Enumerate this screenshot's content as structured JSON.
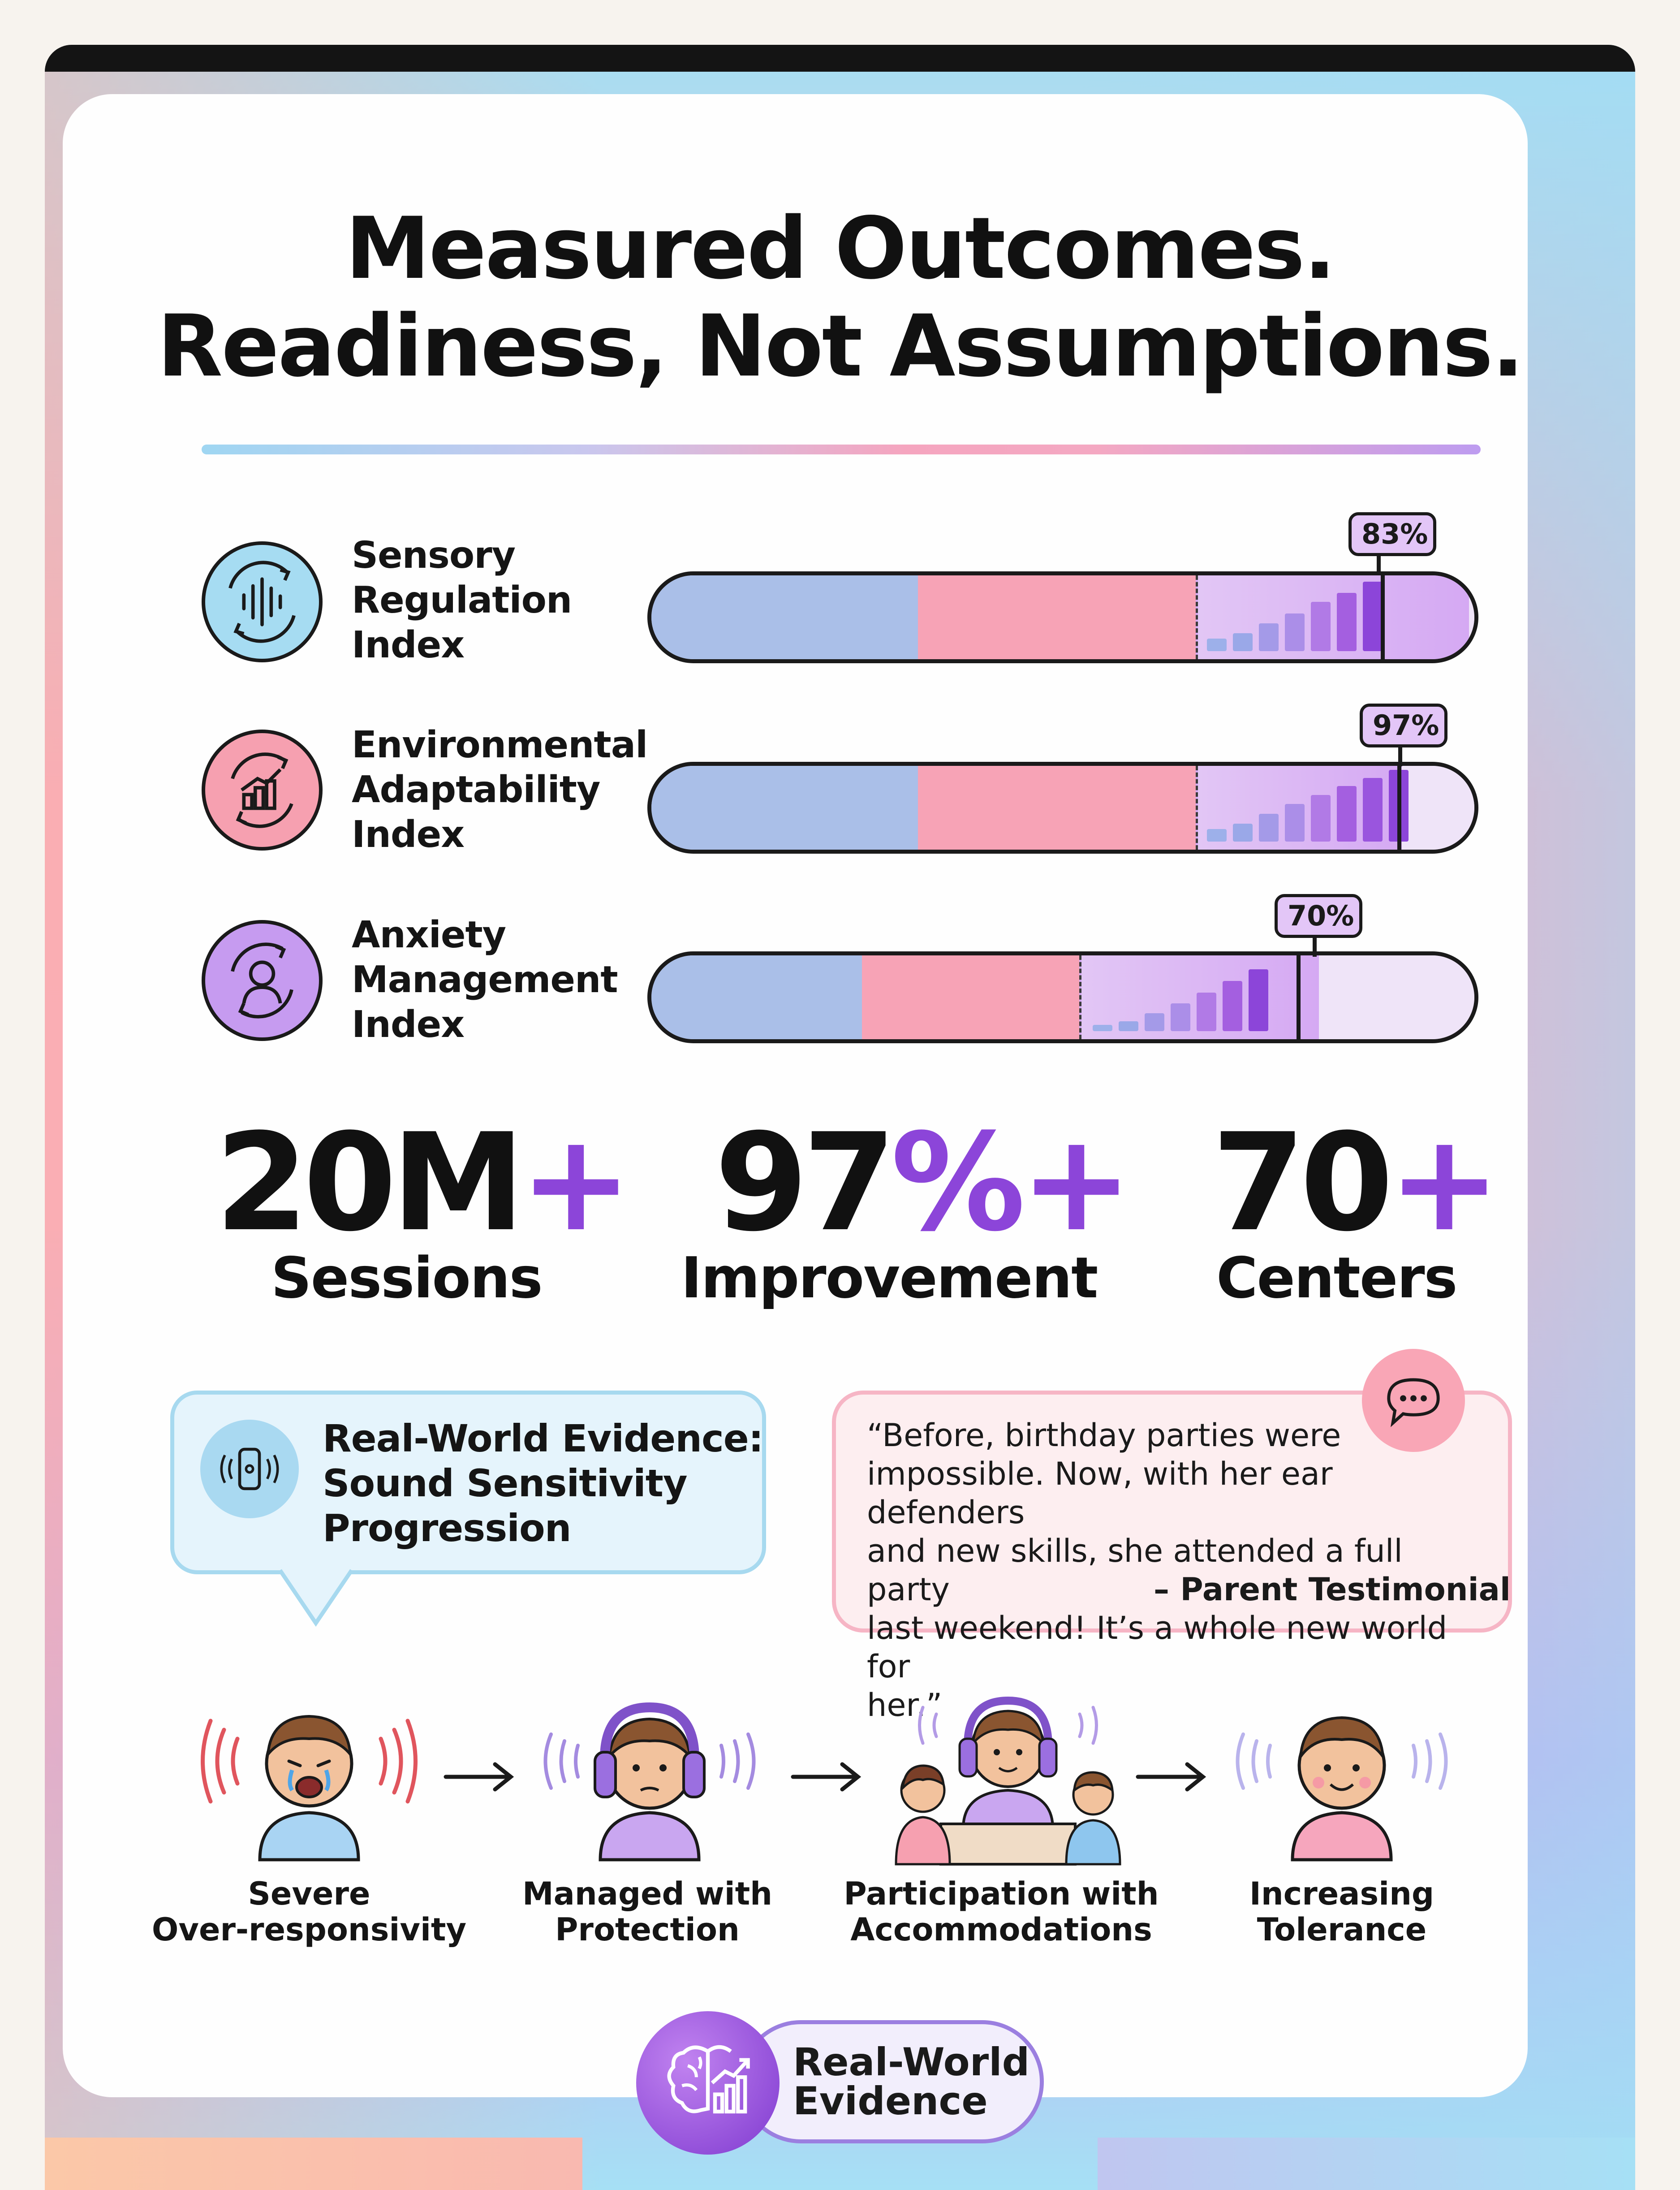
{
  "title": {
    "line1": "Measured Outcomes.",
    "line2": "Readiness, Not Assumptions."
  },
  "metrics": [
    {
      "label_lines": [
        "Sensory",
        "Regulation",
        "Index"
      ],
      "icon": "sound-wave-cycle-icon",
      "icon_color": "#a6dcf2",
      "value_percent": 83,
      "tag": "83%"
    },
    {
      "label_lines": [
        "Environmental",
        "Adaptability",
        "Index"
      ],
      "icon": "growth-chart-icon",
      "icon_color": "#f6a0b0",
      "value_percent": 97,
      "tag": "97%"
    },
    {
      "label_lines": [
        "Anxiety",
        "Management",
        "Index"
      ],
      "icon": "person-cycle-icon",
      "icon_color": "#c69bf0",
      "value_percent": 70,
      "tag": "70%"
    }
  ],
  "stats": [
    {
      "number": "20M",
      "suffix": "+",
      "label": "Sessions"
    },
    {
      "number": "97",
      "suffix": "%+",
      "label": "Improvement"
    },
    {
      "number": "70",
      "suffix": "+",
      "label": "Centers"
    }
  ],
  "evidence": {
    "icon": "sound-device-icon",
    "title_lines": [
      "Real-World Evidence:",
      "Sound Sensitivity",
      "Progression"
    ]
  },
  "testimonial": {
    "icon": "speech-bubble-icon",
    "lines": [
      "“Before, birthday parties were",
      "impossible. Now, with her ear defenders",
      "and new skills, she attended a full party",
      "last weekend! It’s a whole new world for",
      "her.”"
    ],
    "attribution": "– Parent Testimonial"
  },
  "progression": [
    {
      "label_lines": [
        "Severe",
        "Over-responsivity"
      ],
      "icon": "distressed-child-icon"
    },
    {
      "label_lines": [
        "Managed with",
        "Protection"
      ],
      "icon": "child-headphones-icon"
    },
    {
      "label_lines": [
        "Participation with",
        "Accommodations"
      ],
      "icon": "group-headphones-icon"
    },
    {
      "label_lines": [
        "Increasing",
        "Tolerance"
      ],
      "icon": "happy-child-icon"
    }
  ],
  "badge": {
    "icon": "brain-chart-icon",
    "lines": [
      "Real-World",
      "Evidence"
    ]
  },
  "colors": {
    "accent_purple": "#8c45d9",
    "bar_blue": "#aabfe8",
    "bar_pink": "#f7a3b6",
    "bar_purple": "#d5a9f3"
  }
}
